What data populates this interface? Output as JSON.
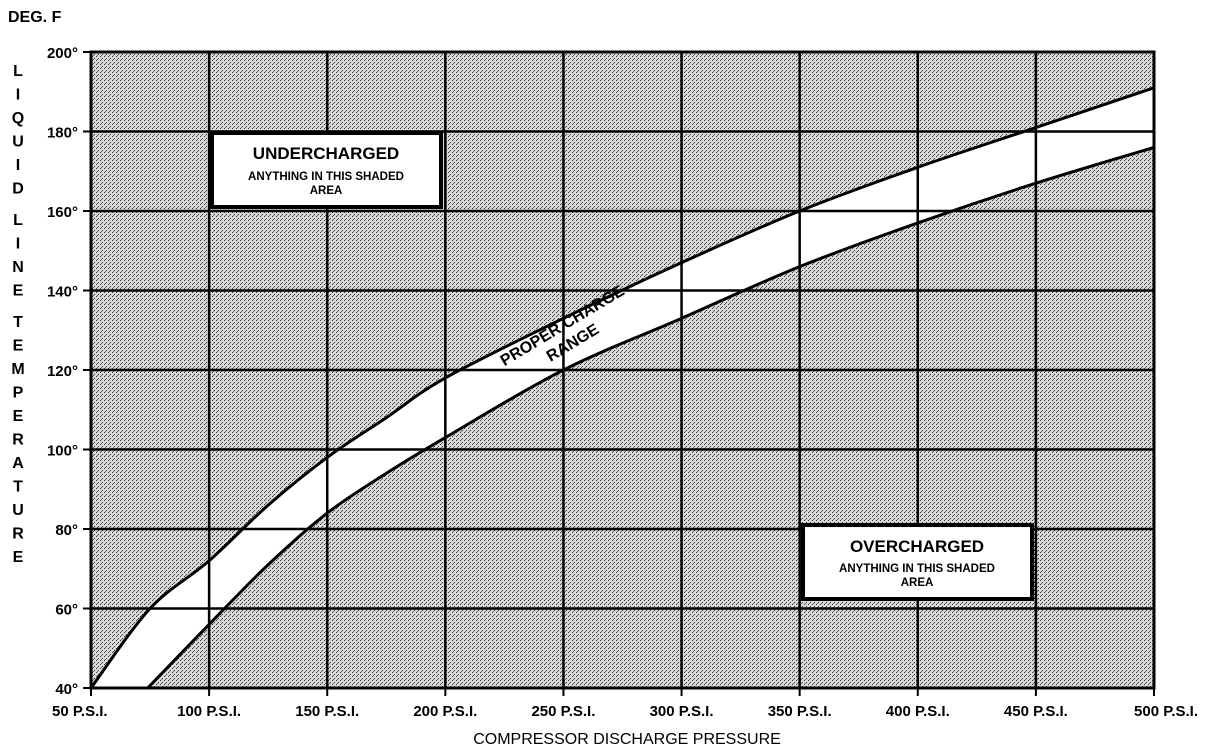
{
  "chart_data": {
    "type": "area",
    "y_unit_label": "DEG. F",
    "xlabel": "COMPRESSOR DISCHARGE PRESSURE",
    "ylabel": "LIQUID LINE TEMPERATURE",
    "xlim": [
      50,
      500
    ],
    "ylim": [
      40,
      200
    ],
    "x_ticks": [
      50,
      100,
      150,
      200,
      250,
      300,
      350,
      400,
      450,
      500
    ],
    "x_tick_labels": [
      "50 P.S.I.",
      "100 P.S.I.",
      "150 P.S.I.",
      "200 P.S.I.",
      "250 P.S.I.",
      "300 P.S.I.",
      "350 P.S.I.",
      "400 P.S.I.",
      "450 P.S.I.",
      "500 P.S.I."
    ],
    "y_ticks": [
      40,
      60,
      80,
      100,
      120,
      140,
      160,
      180,
      200
    ],
    "y_tick_labels": [
      "40°",
      "60°",
      "80°",
      "100°",
      "120°",
      "140°",
      "160°",
      "180°",
      "200°"
    ],
    "grid": true,
    "series": [
      {
        "role": "upper_boundary",
        "x": [
          50,
          75,
          100,
          125,
          150,
          175,
          200,
          250,
          300,
          350,
          400,
          450,
          500
        ],
        "values": [
          40,
          60,
          72,
          86,
          98,
          108,
          118,
          133,
          147,
          160,
          171,
          181,
          191
        ]
      },
      {
        "role": "lower_boundary",
        "x": [
          74,
          100,
          125,
          150,
          175,
          200,
          250,
          300,
          350,
          400,
          450,
          500
        ],
        "values": [
          40,
          56,
          71,
          84,
          94,
          103,
          120,
          133,
          146,
          157,
          167,
          176
        ]
      }
    ],
    "annotations": {
      "band_line1": "PROPER CHARGE",
      "band_line2": "RANGE",
      "undercharged_title": "UNDERCHARGED",
      "undercharged_line1": "ANYTHING IN THIS SHADED",
      "undercharged_line2": "AREA",
      "overcharged_title": "OVERCHARGED",
      "overcharged_line1": "ANYTHING IN THIS SHADED",
      "overcharged_line2": "AREA"
    },
    "colors": {
      "shade": "#9a9a9a",
      "band": "#ffffff",
      "lines": "#000000"
    }
  }
}
